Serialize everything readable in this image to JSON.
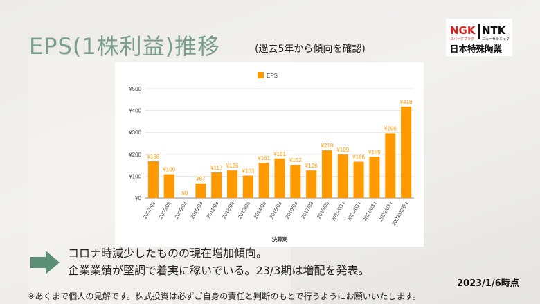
{
  "title": "EPS(1株利益)推移",
  "subtitle": "(過去5年から傾向を確認)",
  "logo": {
    "ngk": "NGK",
    "ntk": "NTK",
    "ngk_sub": "スパークプラグ",
    "ntk_sub": "ニューセラミック",
    "company": "日本特殊陶業",
    "colors": {
      "ngk": "#d9231d",
      "ntk": "#111111"
    }
  },
  "comments": {
    "line1": "コロナ時減少したものの現在増加傾向。",
    "line2": "企業業績が堅調で着実に稼いでいる。23/3期は増配を発表。"
  },
  "date": "2023/1/6時点",
  "disclaimer": "※あくまで個人の見解です。株式投資は必ずご自身の責任と判断のもとで行うようにお願いいたします。",
  "colors": {
    "title": "#7a9e8c",
    "bar": "#ff9900",
    "arrow": "#5c8f78"
  },
  "chart_data": {
    "type": "bar",
    "legend": "top",
    "grid": true,
    "xlabel": "決算期",
    "ylabel": "",
    "ylim": [
      0,
      500
    ],
    "yticks": [
      "¥0",
      "¥100",
      "¥200",
      "¥300",
      "¥400",
      "¥500"
    ],
    "categories": [
      "2007/03",
      "2008/03",
      "2009/03",
      "2010/03",
      "2011/03",
      "2012/03",
      "2013/03",
      "2014/03",
      "2015/03",
      "2016/03",
      "2017/03",
      "2018/03",
      "2019/03 I",
      "2020/03 I",
      "2021/03 I",
      "2022/03 I",
      "2023/03予 I"
    ],
    "series": [
      {
        "name": "EPS",
        "values": [
          168,
          109,
          0,
          67,
          117,
          126,
          103,
          161,
          181,
          152,
          126,
          218,
          199,
          166,
          189,
          296,
          418
        ],
        "labels": [
          "¥168",
          "¥109",
          "¥0",
          "¥67",
          "¥117",
          "¥126",
          "¥103",
          "¥161",
          "¥181",
          "¥152",
          "¥126",
          "¥218",
          "¥199",
          "¥166",
          "¥189",
          "¥296",
          "¥418"
        ]
      }
    ]
  }
}
